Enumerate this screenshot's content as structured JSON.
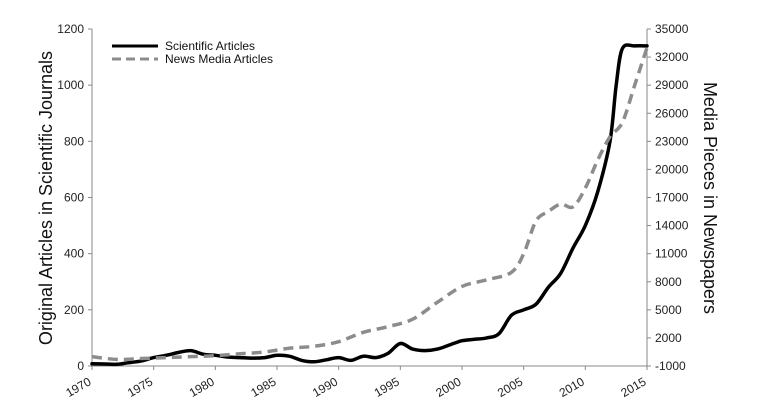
{
  "chart_data": {
    "type": "line",
    "title": "",
    "xlabel": "",
    "ylabel_left": "Original Articles in Scientific Journals",
    "ylabel_right": "Media Pieces in Newspapers",
    "xlim": [
      1970,
      2015
    ],
    "ylim_left": [
      0,
      1200
    ],
    "ylim_right": [
      -1000,
      35000
    ],
    "x_ticks": [
      "1970",
      "1975",
      "1980",
      "1985",
      "1990",
      "1995",
      "2000",
      "2005",
      "2010",
      "2015"
    ],
    "y_ticks_left": [
      "0",
      "200",
      "400",
      "600",
      "800",
      "1000",
      "1200"
    ],
    "y_ticks_right": [
      "-1000",
      "2000",
      "5000",
      "8000",
      "11000",
      "14000",
      "17000",
      "20000",
      "23000",
      "26000",
      "29000",
      "32000",
      "35000"
    ],
    "legend": {
      "position": "top-left"
    },
    "grid": false,
    "series": [
      {
        "name": "Scientific Articles",
        "axis": "left",
        "color": "#000000",
        "style": "solid",
        "x": [
          1970,
          1971,
          1972,
          1973,
          1974,
          1975,
          1976,
          1977,
          1978,
          1979,
          1980,
          1981,
          1982,
          1983,
          1984,
          1985,
          1986,
          1987,
          1988,
          1989,
          1990,
          1991,
          1992,
          1993,
          1994,
          1995,
          1996,
          1997,
          1998,
          1999,
          2000,
          2001,
          2002,
          2003,
          2004,
          2005,
          2006,
          2007,
          2008,
          2009,
          2010,
          2011,
          2012,
          2012.5,
          2013,
          2014,
          2015
        ],
        "values": [
          8,
          7,
          6,
          12,
          18,
          30,
          38,
          48,
          55,
          42,
          38,
          32,
          30,
          28,
          30,
          38,
          35,
          20,
          15,
          22,
          30,
          20,
          35,
          30,
          45,
          80,
          60,
          55,
          60,
          75,
          90,
          95,
          100,
          115,
          180,
          200,
          220,
          280,
          330,
          420,
          500,
          620,
          800,
          1000,
          1130,
          1140,
          1140
        ]
      },
      {
        "name": "News Media Articles",
        "axis": "right",
        "color": "#8c8c8c",
        "style": "dashed",
        "x": [
          1970,
          1972,
          1974,
          1976,
          1978,
          1980,
          1982,
          1984,
          1986,
          1988,
          1990,
          1992,
          1994,
          1996,
          1998,
          2000,
          2002,
          2004,
          2005,
          2006,
          2007,
          2008,
          2009,
          2010,
          2011,
          2012,
          2013,
          2014,
          2015
        ],
        "values": [
          0,
          -300,
          -200,
          -100,
          0,
          100,
          300,
          500,
          900,
          1100,
          1600,
          2600,
          3200,
          4000,
          5800,
          7500,
          8200,
          9000,
          11000,
          14500,
          15500,
          16300,
          16000,
          18000,
          21000,
          23500,
          25000,
          29000,
          33000
        ]
      }
    ]
  }
}
